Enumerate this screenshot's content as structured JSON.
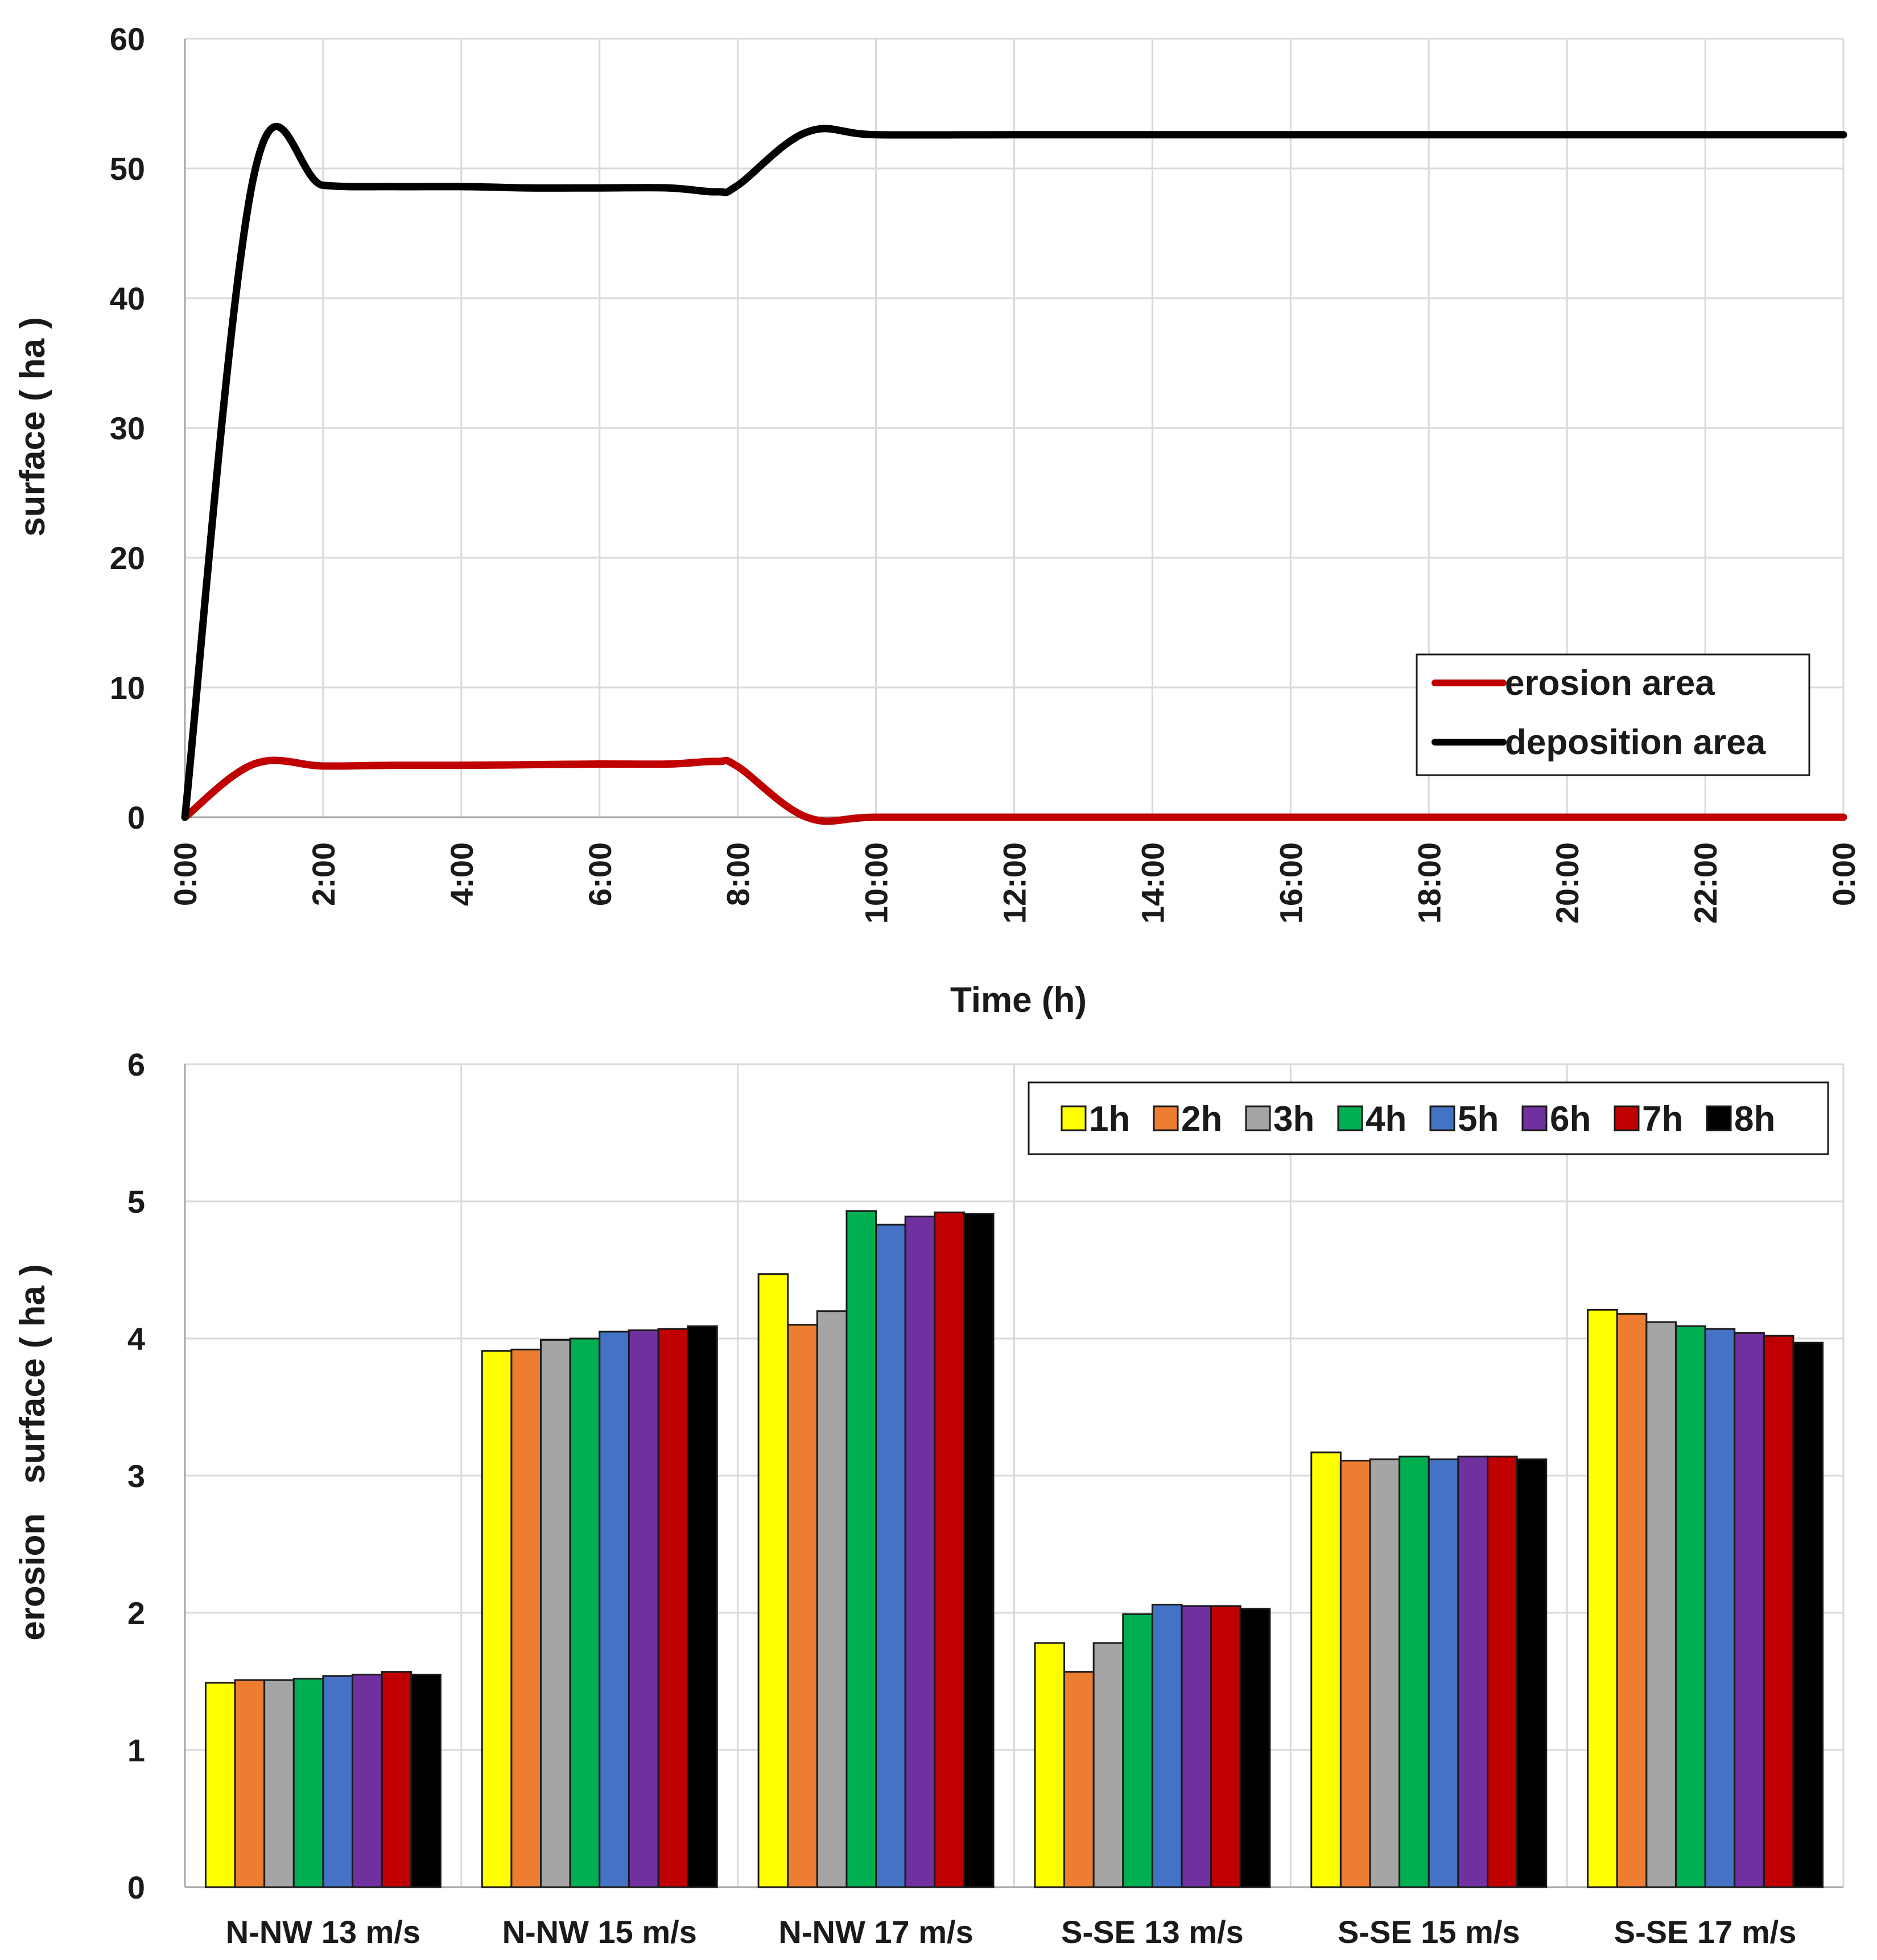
{
  "chart_data": [
    {
      "type": "line",
      "title": "",
      "xlabel": "Time (h)",
      "ylabel": "surface ( ha )",
      "ylim": [
        0,
        60
      ],
      "yticks": [
        0,
        10,
        20,
        30,
        40,
        50,
        60
      ],
      "xlim_hours": [
        0,
        24
      ],
      "xtick_hours": [
        0,
        2,
        4,
        6,
        8,
        10,
        12,
        14,
        16,
        18,
        20,
        22,
        24
      ],
      "xtick_labels": [
        "0:00",
        "2:00",
        "4:00",
        "6:00",
        "8:00",
        "10:00",
        "12:00",
        "14:00",
        "16:00",
        "18:00",
        "20:00",
        "22:00",
        "0:00"
      ],
      "grid": true,
      "legend_position": "bottom-right",
      "series": [
        {
          "name": "erosion area",
          "color": "#c00000",
          "x": [
            0,
            1,
            2,
            3,
            4,
            5,
            6,
            7,
            7.7,
            8,
            9,
            10,
            12,
            14,
            16,
            18,
            20,
            22,
            24
          ],
          "y": [
            0,
            4.1,
            3.95,
            4.0,
            4.0,
            4.05,
            4.1,
            4.1,
            4.3,
            3.9,
            0,
            0,
            0,
            0,
            0,
            0,
            0,
            0,
            0
          ]
        },
        {
          "name": "deposition area",
          "color": "#000000",
          "x": [
            0,
            1,
            2,
            3,
            4,
            5,
            6,
            7,
            7.7,
            8,
            9,
            10,
            12,
            14,
            16,
            18,
            20,
            22,
            24
          ],
          "y": [
            0,
            49.5,
            48.7,
            48.6,
            48.6,
            48.5,
            48.5,
            48.5,
            48.2,
            48.7,
            52.8,
            52.6,
            52.6,
            52.6,
            52.6,
            52.6,
            52.6,
            52.6,
            52.6
          ]
        }
      ]
    },
    {
      "type": "bar",
      "title": "",
      "xlabel": "",
      "ylabel": "erosion   surface ( ha )",
      "ylim": [
        0,
        6
      ],
      "yticks": [
        0,
        1,
        2,
        3,
        4,
        5,
        6
      ],
      "grid": true,
      "legend_position": "top-right",
      "categories": [
        "N-NW 13 m/s",
        "N-NW 15 m/s",
        "N-NW 17 m/s",
        "S-SE 13 m/s",
        "S-SE 15 m/s",
        "S-SE 17 m/s"
      ],
      "series": [
        {
          "name": "1h",
          "color": "#ffff00",
          "values": [
            1.49,
            3.91,
            4.47,
            1.78,
            3.17,
            4.21
          ]
        },
        {
          "name": "2h",
          "color": "#ed7d31",
          "values": [
            1.51,
            3.92,
            4.1,
            1.57,
            3.11,
            4.18
          ]
        },
        {
          "name": "3h",
          "color": "#a5a5a5",
          "values": [
            1.51,
            3.99,
            4.2,
            1.78,
            3.12,
            4.12
          ]
        },
        {
          "name": "4h",
          "color": "#00b050",
          "values": [
            1.52,
            4.0,
            4.93,
            1.99,
            3.14,
            4.09
          ]
        },
        {
          "name": "5h",
          "color": "#4472c4",
          "values": [
            1.54,
            4.05,
            4.83,
            2.06,
            3.12,
            4.07
          ]
        },
        {
          "name": "6h",
          "color": "#7030a0",
          "values": [
            1.55,
            4.06,
            4.89,
            2.05,
            3.14,
            4.04
          ]
        },
        {
          "name": "7h",
          "color": "#c00000",
          "values": [
            1.57,
            4.07,
            4.92,
            2.05,
            3.14,
            4.02
          ]
        },
        {
          "name": "8h",
          "color": "#000000",
          "values": [
            1.55,
            4.09,
            4.91,
            2.03,
            3.12,
            3.97
          ]
        }
      ]
    }
  ]
}
